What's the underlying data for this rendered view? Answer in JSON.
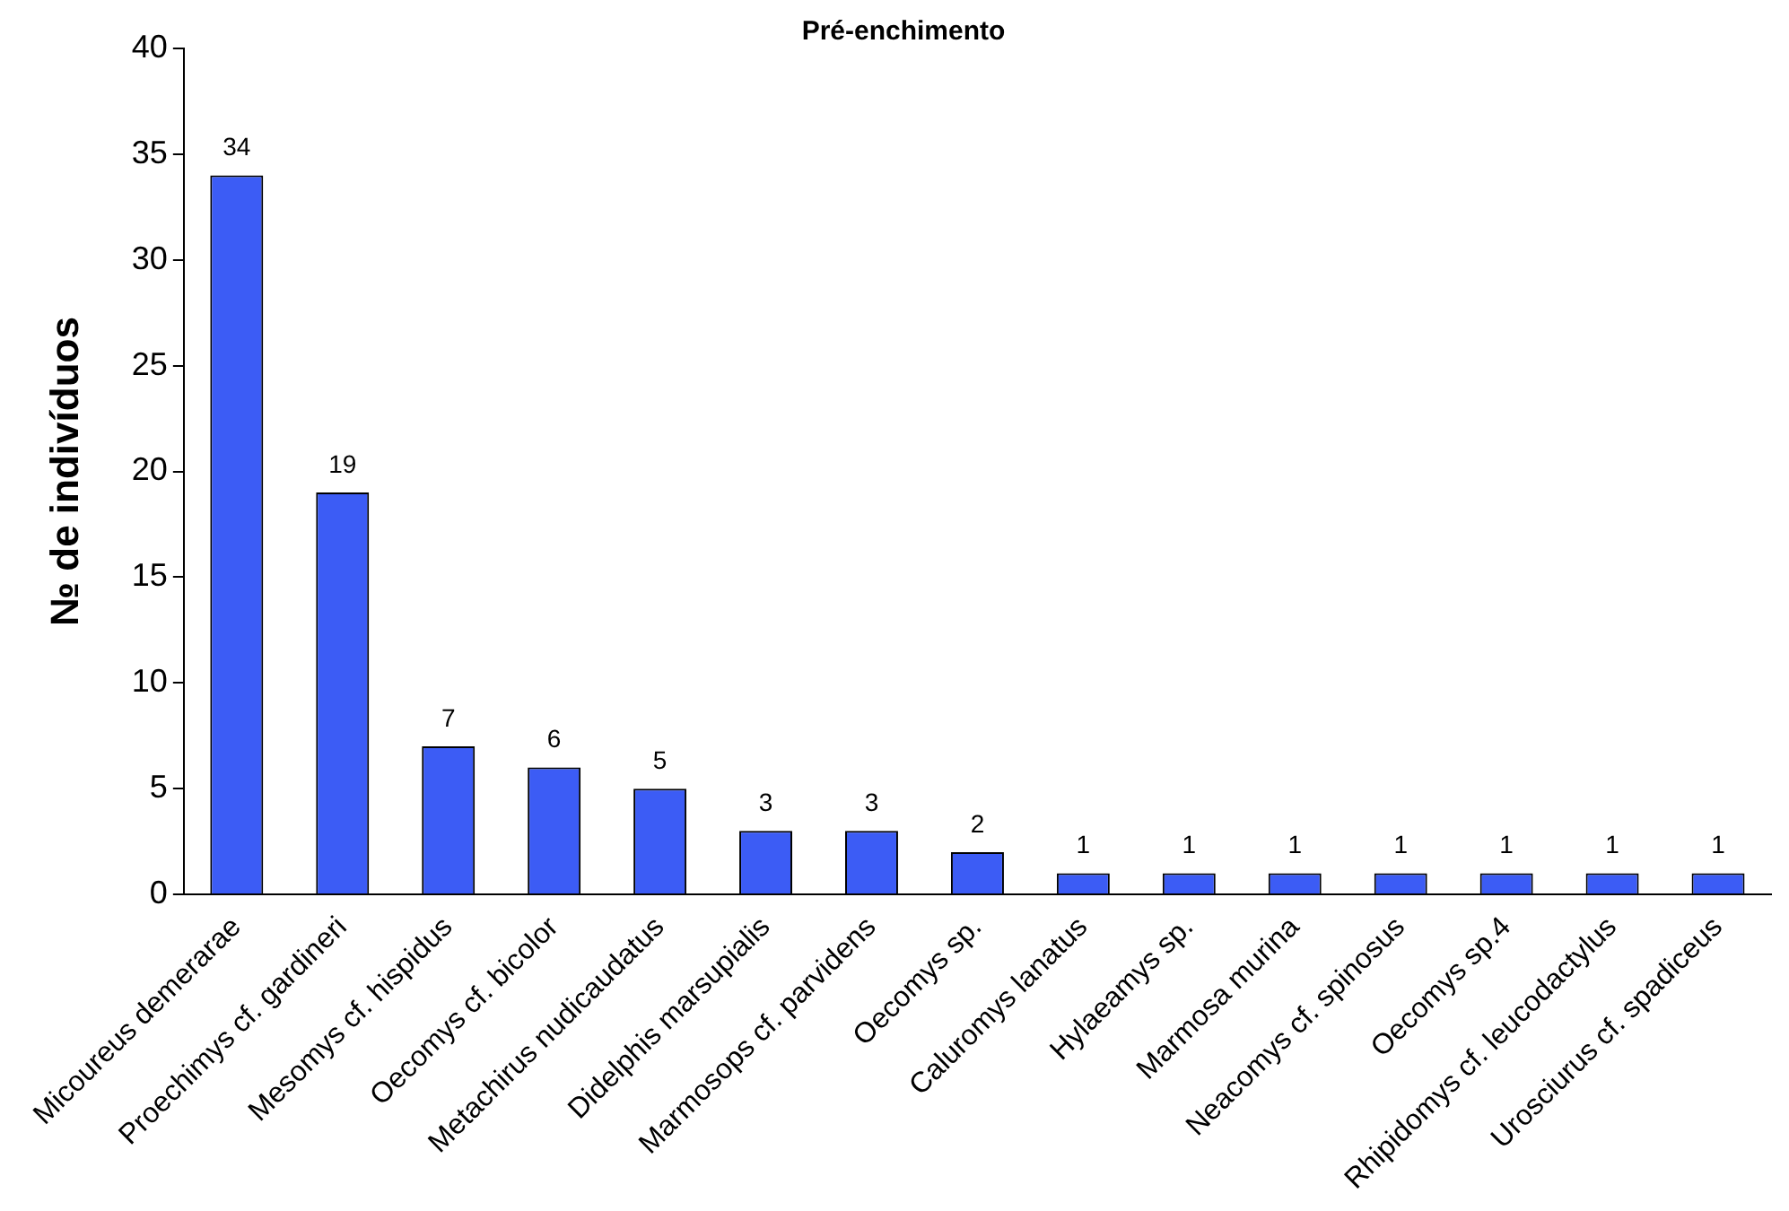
{
  "chart_data": {
    "type": "bar",
    "title": "Pré-enchimento",
    "ylabel": "№ de indivíduos",
    "categories": [
      "Micoureus demerarae",
      "Proechimys cf. gardineri",
      "Mesomys cf. hispidus",
      "Oecomys cf. bicolor",
      "Metachirus nudicaudatus",
      "Didelphis marsupialis",
      "Marmosops cf. parvidens",
      "Oecomys sp.",
      "Caluromys lanatus",
      "Hylaeamys sp.",
      "Marmosa murina",
      "Neacomys cf. spinosus",
      "Oecomys sp.4",
      "Rhipidomys cf. leucodactylus",
      "Urosciurus cf. spadiceus"
    ],
    "values": [
      34,
      19,
      7,
      6,
      5,
      3,
      3,
      2,
      1,
      1,
      1,
      1,
      1,
      1,
      1
    ],
    "color": "#3c5cf5",
    "ylim": [
      0,
      40
    ],
    "yticks": [
      0,
      5,
      10,
      15,
      20,
      25,
      30,
      35,
      40
    ],
    "grid": false,
    "legend": false,
    "data_labels": true
  }
}
